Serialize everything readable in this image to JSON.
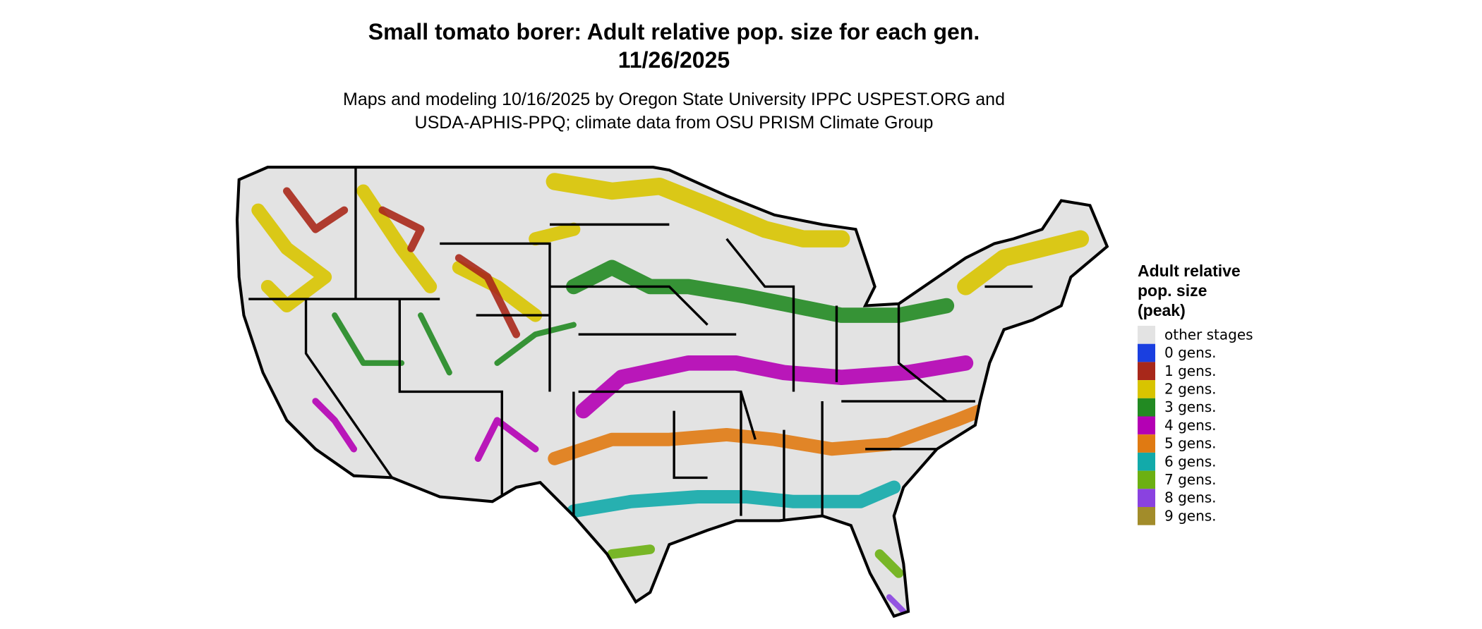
{
  "header": {
    "title": "Small tomato borer: Adult relative pop. size for each gen.",
    "date": "11/26/2025",
    "subtitle_lines": [
      "Maps and modeling 10/16/2025 by Oregon State University IPPC USPEST.ORG and",
      "USDA-APHIS-PPQ; climate data from OSU PRISM Climate Group"
    ]
  },
  "legend": {
    "title_lines": [
      "Adult relative",
      "pop. size",
      "(peak)"
    ],
    "items": [
      {
        "label": "other stages",
        "color": "#e3e3e3"
      },
      {
        "label": "0 gens.",
        "color": "#1a3fe0"
      },
      {
        "label": "1 gens.",
        "color": "#a8281a"
      },
      {
        "label": "2 gens.",
        "color": "#d8c400"
      },
      {
        "label": "3 gens.",
        "color": "#228a22"
      },
      {
        "label": "4 gens.",
        "color": "#b400b4"
      },
      {
        "label": "5 gens.",
        "color": "#e07a12"
      },
      {
        "label": "6 gens.",
        "color": "#12aaaa"
      },
      {
        "label": "7 gens.",
        "color": "#6cb012"
      },
      {
        "label": "8 gens.",
        "color": "#8a42e0"
      },
      {
        "label": "9 gens.",
        "color": "#a28c2a"
      }
    ]
  }
}
